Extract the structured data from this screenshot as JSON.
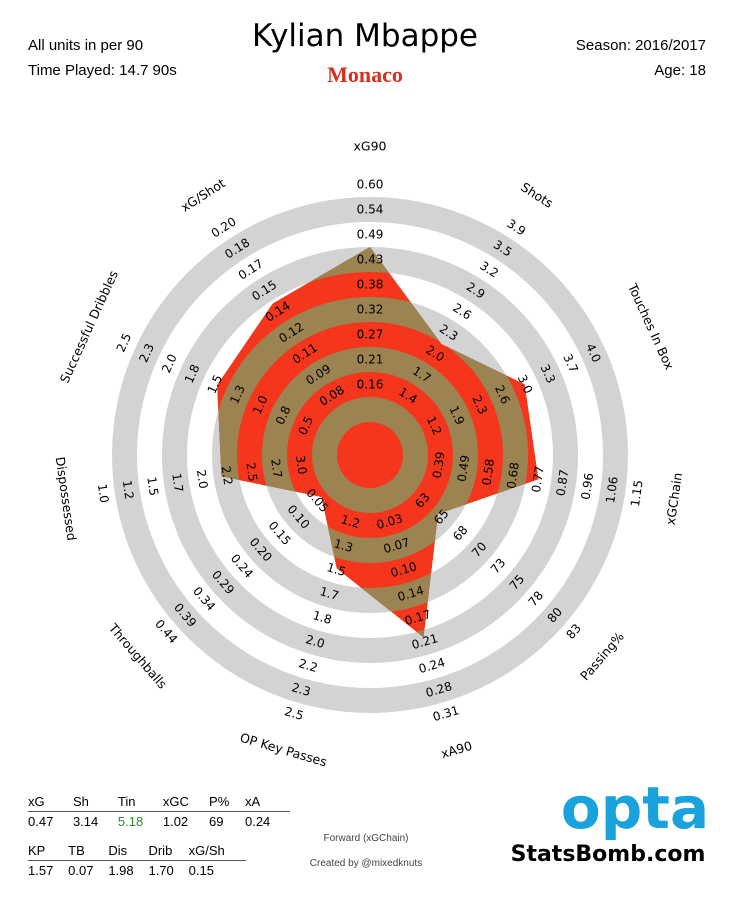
{
  "header": {
    "units_note": "All units in per 90",
    "time_played": "Time Played: 14.7 90s",
    "player_name": "Kylian Mbappe",
    "team": "Monaco",
    "season": "Season: 2016/2017",
    "age": "Age: 18"
  },
  "colors": {
    "band_light": "#d3d3d3",
    "radar_red": "#f5361c",
    "radar_tan": "#9b8451",
    "team_red": "#d7301f",
    "opta_blue": "#1aa2dc",
    "highlight_green": "#2e8b2e"
  },
  "chart_data": {
    "type": "radar",
    "title": "Kylian Mbappe",
    "axes": [
      {
        "name": "xG90",
        "ticks": [
          "0.16",
          "0.21",
          "0.27",
          "0.32",
          "0.38",
          "0.43",
          "0.49",
          "0.54",
          "0.60"
        ],
        "value": 0.47
      },
      {
        "name": "Shots",
        "ticks": [
          "1.4",
          "1.7",
          "2.0",
          "2.3",
          "2.6",
          "2.9",
          "3.2",
          "3.5",
          "3.9"
        ],
        "value": 3.14
      },
      {
        "name": "Touches In Box",
        "ticks": [
          "1.2",
          "1.9",
          "2.3",
          "2.6",
          "3.0",
          "3.3",
          "3.7",
          "4.0"
        ],
        "value": 5.18
      },
      {
        "name": "xGChain",
        "ticks": [
          "0.39",
          "0.49",
          "0.58",
          "0.68",
          "0.77",
          "0.87",
          "0.96",
          "1.06",
          "1.15"
        ],
        "value": 1.02
      },
      {
        "name": "Passing%",
        "ticks": [
          "63",
          "65",
          "68",
          "70",
          "73",
          "75",
          "78",
          "80",
          "83"
        ],
        "value": 69
      },
      {
        "name": "xA90",
        "ticks": [
          "0.03",
          "0.07",
          "0.10",
          "0.14",
          "0.17",
          "0.21",
          "0.24",
          "0.28",
          "0.31"
        ],
        "value": 0.24
      },
      {
        "name": "OP Key Passes",
        "ticks": [
          "1.2",
          "1.3",
          "1.5",
          "1.7",
          "1.8",
          "2.0",
          "2.2",
          "2.3",
          "2.5"
        ],
        "value": 1.57
      },
      {
        "name": "Throughballs",
        "ticks": [
          "0.05",
          "0.10",
          "0.15",
          "0.20",
          "0.24",
          "0.29",
          "0.34",
          "0.39",
          "0.44"
        ],
        "value": 0.07
      },
      {
        "name": "Dispossessed",
        "ticks": [
          "3.0",
          "2.7",
          "2.5",
          "2.2",
          "2.0",
          "1.7",
          "1.5",
          "1.2",
          "1.0"
        ],
        "value": 1.98
      },
      {
        "name": "Successful Dribbles",
        "ticks": [
          "0.5",
          "0.8",
          "1.0",
          "1.3",
          "1.5",
          "1.8",
          "2.0",
          "2.3",
          "2.5"
        ],
        "value": 1.7
      },
      {
        "name": "xG/Shot",
        "ticks": [
          "0.08",
          "0.09",
          "0.11",
          "0.12",
          "0.14",
          "0.15",
          "0.17",
          "0.18",
          "0.20"
        ],
        "value": 0.15
      }
    ],
    "levels": [
      0.75,
      0.37,
      0.56,
      0.56,
      0.16,
      0.66,
      0.3,
      0.03,
      0.46,
      0.55,
      0.61
    ]
  },
  "stats_table_1": {
    "headers": [
      "xG",
      "Sh",
      "Tin",
      "xGC",
      "P%",
      "xA"
    ],
    "values": [
      "0.47",
      "3.14",
      "5.18",
      "1.02",
      "69",
      "0.24"
    ]
  },
  "stats_table_2": {
    "headers": [
      "KP",
      "TB",
      "Dis",
      "Drib",
      "xG/Sh"
    ],
    "values": [
      "1.57",
      "0.07",
      "1.98",
      "1.70",
      "0.15"
    ]
  },
  "footer": {
    "template": "Forward (xGChain)",
    "credit": "Created by @mixedknuts",
    "logo_text": "opta",
    "site": "StatsBomb.com"
  }
}
